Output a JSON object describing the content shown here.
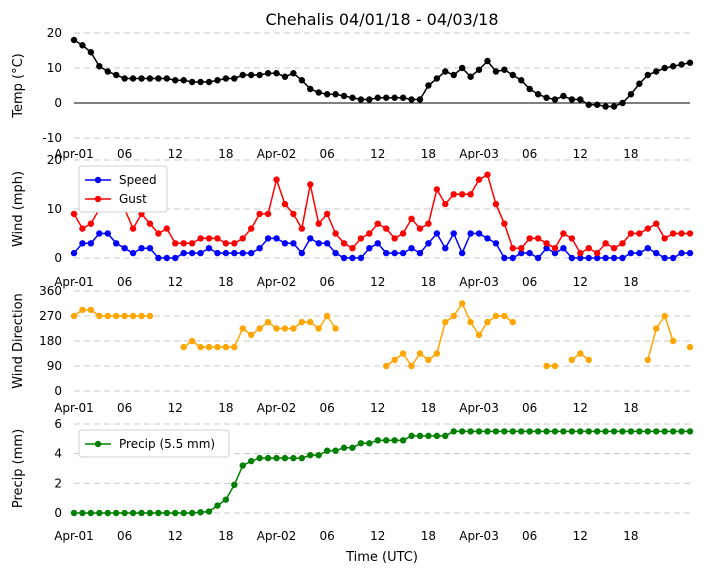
{
  "title": "Chehalis 04/01/18 - 04/03/18",
  "xlabel": "Time (UTC)",
  "xtick_labels": [
    "Apr-01",
    "06",
    "12",
    "18",
    "Apr-02",
    "06",
    "12",
    "18",
    "Apr-03",
    "06",
    "12",
    "18"
  ],
  "chart_data": [
    {
      "type": "line",
      "id": "temp",
      "ylabel": "Temp (°C)",
      "ylim": [
        -10,
        20
      ],
      "yticks": [
        -10,
        0,
        10,
        20
      ],
      "zero_line": true,
      "grid": true,
      "series": [
        {
          "color": "#000000",
          "values": [
            18,
            16.5,
            14.5,
            10.5,
            9,
            8,
            7,
            7,
            7,
            7,
            7,
            7,
            6.5,
            6.5,
            6,
            6,
            6,
            6.5,
            7,
            7,
            8,
            8,
            8,
            8.5,
            8.5,
            7.5,
            8.5,
            6.5,
            4,
            3,
            2.5,
            2.5,
            2,
            1.5,
            1,
            1,
            1.5,
            1.5,
            1.5,
            1.5,
            1,
            1,
            5,
            7,
            9,
            8,
            10,
            7.5,
            9.5,
            12,
            9,
            9.5,
            8,
            6.5,
            4,
            2.5,
            1.5,
            1,
            2,
            1,
            1,
            -0.5,
            -0.5,
            -1,
            -1,
            0,
            2.5,
            5.5,
            8,
            9,
            10,
            10.5,
            11,
            11.5
          ]
        }
      ]
    },
    {
      "type": "line",
      "id": "wind",
      "ylabel": "Wind (mph)",
      "ylim": [
        0,
        20
      ],
      "yticks": [
        0,
        10,
        20
      ],
      "grid": true,
      "legend": "top-left",
      "series": [
        {
          "name": "Speed",
          "color": "#0000ff",
          "values": [
            1,
            3,
            3,
            5,
            5,
            3,
            2,
            1,
            2,
            2,
            0,
            0,
            0,
            1,
            1,
            1,
            2,
            1,
            1,
            1,
            1,
            1,
            2,
            4,
            4,
            3,
            3,
            1,
            4,
            3,
            3,
            1,
            0,
            0,
            0,
            2,
            3,
            1,
            1,
            1,
            2,
            1,
            3,
            5,
            2,
            5,
            1,
            5,
            5,
            4,
            3,
            0,
            0,
            1,
            1,
            0,
            2,
            1,
            2,
            0,
            0,
            0,
            0,
            0,
            0,
            0,
            1,
            1,
            2,
            1,
            0,
            0,
            1,
            1
          ]
        },
        {
          "name": "Gust",
          "color": "#ff0000",
          "values": [
            9,
            6,
            7,
            10,
            11,
            11,
            10,
            6,
            9,
            7,
            5,
            6,
            3,
            3,
            3,
            4,
            4,
            4,
            3,
            3,
            4,
            6,
            9,
            9,
            16,
            11,
            9,
            6,
            15,
            7,
            9,
            5,
            3,
            2,
            4,
            5,
            7,
            6,
            4,
            5,
            8,
            6,
            7,
            14,
            11,
            13,
            13,
            13,
            16,
            17,
            11,
            7,
            2,
            2,
            4,
            4,
            3,
            2,
            5,
            4,
            1,
            2,
            1,
            3,
            2,
            3,
            5,
            5,
            6,
            7,
            4,
            5,
            5,
            5
          ]
        }
      ]
    },
    {
      "type": "scatter",
      "id": "direction",
      "ylabel": "Wind Direction",
      "ylim": [
        0,
        360
      ],
      "yticks": [
        0,
        90,
        180,
        270,
        360
      ],
      "grid": true,
      "series": [
        {
          "color": "#ffa500",
          "values": [
            270,
            292,
            292,
            270,
            270,
            270,
            270,
            270,
            270,
            270,
            null,
            null,
            null,
            158,
            180,
            158,
            158,
            158,
            158,
            158,
            225,
            202,
            225,
            248,
            225,
            225,
            225,
            248,
            248,
            225,
            270,
            225,
            null,
            null,
            null,
            null,
            null,
            90,
            112,
            135,
            90,
            135,
            112,
            135,
            248,
            270,
            315,
            248,
            202,
            248,
            270,
            270,
            248,
            null,
            null,
            null,
            90,
            90,
            null,
            112,
            135,
            112,
            null,
            null,
            null,
            null,
            null,
            null,
            112,
            225,
            270,
            180,
            null,
            158
          ]
        }
      ]
    },
    {
      "type": "line",
      "id": "precip",
      "ylabel": "Precip (mm)",
      "ylim": [
        0,
        6
      ],
      "yticks": [
        0,
        2,
        4,
        6
      ],
      "grid": true,
      "legend": "top-left",
      "series": [
        {
          "name": "Precip (5.5 mm)",
          "color": "#008000",
          "values": [
            0,
            0,
            0,
            0,
            0,
            0,
            0,
            0,
            0,
            0,
            0,
            0,
            0,
            0,
            0,
            0.05,
            0.1,
            0.5,
            0.9,
            1.9,
            3.2,
            3.5,
            3.7,
            3.7,
            3.7,
            3.7,
            3.7,
            3.7,
            3.9,
            3.9,
            4.2,
            4.2,
            4.4,
            4.4,
            4.7,
            4.7,
            4.9,
            4.9,
            4.9,
            4.9,
            5.2,
            5.2,
            5.2,
            5.2,
            5.2,
            5.5,
            5.5,
            5.5,
            5.5,
            5.5,
            5.5,
            5.5,
            5.5,
            5.5,
            5.5,
            5.5,
            5.5,
            5.5,
            5.5,
            5.5,
            5.5,
            5.5,
            5.5,
            5.5,
            5.5,
            5.5,
            5.5,
            5.5,
            5.5,
            5.5,
            5.5,
            5.5,
            5.5,
            5.5
          ]
        }
      ]
    }
  ]
}
